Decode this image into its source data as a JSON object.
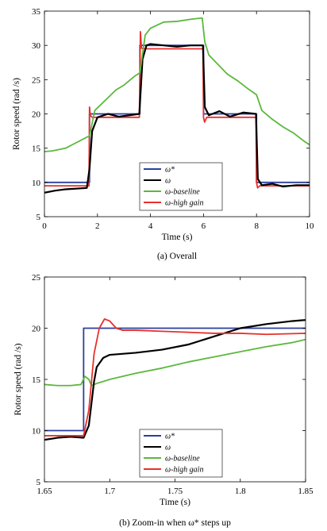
{
  "chart_data": [
    {
      "type": "line",
      "caption": "(a) Overall",
      "xlabel": "Time (s)",
      "ylabel": "Rotor speed (rad /s)",
      "xlim": [
        0,
        10
      ],
      "ylim": [
        5,
        35
      ],
      "xticks": [
        0,
        2,
        4,
        6,
        8,
        10
      ],
      "yticks": [
        5,
        10,
        15,
        20,
        25,
        30,
        35
      ],
      "grid": false,
      "legend_position": "lower-center",
      "legend": [
        {
          "name": "ω*",
          "color": "#2b3f9e"
        },
        {
          "name": "ω",
          "color": "#000000"
        },
        {
          "name": "ω-baseline",
          "color": "#5cb83e"
        },
        {
          "name": "ω-high gain",
          "color": "#e8302c"
        }
      ],
      "series": [
        {
          "name": "ω*",
          "color": "#2b3f9e",
          "x": [
            0,
            1.7,
            1.7,
            3.6,
            3.6,
            6.0,
            6.0,
            8.0,
            8.0,
            10
          ],
          "y": [
            10,
            10,
            20,
            20,
            30,
            30,
            20,
            20,
            10,
            10
          ]
        },
        {
          "name": "ω-high gain",
          "color": "#e8302c",
          "x": [
            0,
            1.68,
            1.7,
            1.73,
            1.8,
            3.58,
            3.62,
            3.66,
            3.75,
            5.98,
            6.0,
            6.04,
            6.12,
            7.98,
            8.0,
            8.04,
            8.12,
            10
          ],
          "y": [
            9.5,
            9.5,
            21,
            19.8,
            19.5,
            19.5,
            32,
            29.6,
            29.5,
            29.5,
            19.5,
            18.8,
            19.5,
            19.5,
            10,
            9.2,
            9.5,
            9.5
          ]
        },
        {
          "name": "ω",
          "color": "#000000",
          "x": [
            0,
            0.4,
            0.8,
            1.2,
            1.6,
            1.7,
            1.8,
            2.0,
            2.4,
            2.8,
            3.2,
            3.58,
            3.7,
            3.85,
            4.0,
            4.5,
            5.0,
            5.5,
            5.98,
            6.05,
            6.2,
            6.6,
            7.0,
            7.5,
            7.98,
            8.05,
            8.2,
            8.6,
            9.0,
            9.5,
            10
          ],
          "y": [
            8.5,
            8.8,
            9.0,
            9.1,
            9.2,
            12,
            17.5,
            19.5,
            20,
            19.6,
            19.8,
            20,
            28,
            30,
            30.2,
            30,
            29.8,
            30,
            30,
            21,
            19.8,
            20.4,
            19.6,
            20.2,
            20,
            10.5,
            9.6,
            9.8,
            9.4,
            9.6,
            9.6
          ]
        },
        {
          "name": "ω-baseline",
          "color": "#5cb83e",
          "x": [
            0,
            0.3,
            0.8,
            1.2,
            1.6,
            1.7,
            1.9,
            2.3,
            2.7,
            3.0,
            3.4,
            3.6,
            3.8,
            4.0,
            4.5,
            5.0,
            5.5,
            5.95,
            6.05,
            6.2,
            6.5,
            6.9,
            7.3,
            7.7,
            8.0,
            8.2,
            8.6,
            9.0,
            9.4,
            9.8,
            10
          ],
          "y": [
            14.5,
            14.6,
            15.0,
            15.8,
            16.6,
            16.8,
            20.5,
            22.0,
            23.5,
            24.2,
            25.5,
            26.0,
            31.5,
            32.5,
            33.4,
            33.5,
            33.8,
            34.0,
            30.5,
            28.6,
            27.4,
            25.8,
            24.8,
            23.6,
            22.8,
            20.5,
            19.2,
            18.1,
            17.2,
            16.0,
            15.5
          ]
        }
      ]
    },
    {
      "type": "line",
      "caption": "(b) Zoom-in when ω* steps up",
      "xlabel": "Time (s)",
      "ylabel": "Rotor speed (rad /s)",
      "xlim": [
        1.65,
        1.85
      ],
      "ylim": [
        5,
        25
      ],
      "xticks": [
        1.65,
        1.7,
        1.75,
        1.8,
        1.85
      ],
      "yticks": [
        5,
        10,
        15,
        20,
        25
      ],
      "grid": false,
      "legend_position": "lower-center",
      "legend": [
        {
          "name": "ω*",
          "color": "#2b3f9e"
        },
        {
          "name": "ω",
          "color": "#000000"
        },
        {
          "name": "ω-baseline",
          "color": "#5cb83e"
        },
        {
          "name": "ω-high gain",
          "color": "#e8302c"
        }
      ],
      "series": [
        {
          "name": "ω*",
          "color": "#2b3f9e",
          "x": [
            1.65,
            1.68,
            1.68,
            1.85
          ],
          "y": [
            10,
            10,
            20,
            20
          ]
        },
        {
          "name": "ω-baseline",
          "color": "#5cb83e",
          "x": [
            1.65,
            1.66,
            1.67,
            1.678,
            1.681,
            1.684,
            1.686,
            1.69,
            1.7,
            1.72,
            1.74,
            1.76,
            1.78,
            1.8,
            1.82,
            1.84,
            1.85
          ],
          "y": [
            14.5,
            14.4,
            14.4,
            14.5,
            15.3,
            15.0,
            14.4,
            14.6,
            15.0,
            15.6,
            16.1,
            16.7,
            17.2,
            17.7,
            18.2,
            18.6,
            18.9
          ]
        },
        {
          "name": "ω",
          "color": "#000000",
          "x": [
            1.65,
            1.66,
            1.67,
            1.68,
            1.684,
            1.688,
            1.69,
            1.695,
            1.7,
            1.72,
            1.74,
            1.76,
            1.78,
            1.8,
            1.82,
            1.84,
            1.85
          ],
          "y": [
            9.1,
            9.3,
            9.4,
            9.3,
            10.5,
            14.8,
            16.2,
            17.1,
            17.4,
            17.6,
            17.9,
            18.4,
            19.2,
            20.0,
            20.4,
            20.7,
            20.8
          ]
        },
        {
          "name": "ω-high gain",
          "color": "#e8302c",
          "x": [
            1.65,
            1.67,
            1.68,
            1.684,
            1.688,
            1.692,
            1.696,
            1.7,
            1.705,
            1.71,
            1.72,
            1.74,
            1.76,
            1.78,
            1.8,
            1.82,
            1.85
          ],
          "y": [
            9.5,
            9.5,
            9.5,
            12.0,
            17.5,
            20.0,
            20.9,
            20.7,
            20.0,
            19.8,
            19.8,
            19.7,
            19.6,
            19.5,
            19.5,
            19.4,
            19.5
          ]
        }
      ]
    }
  ]
}
